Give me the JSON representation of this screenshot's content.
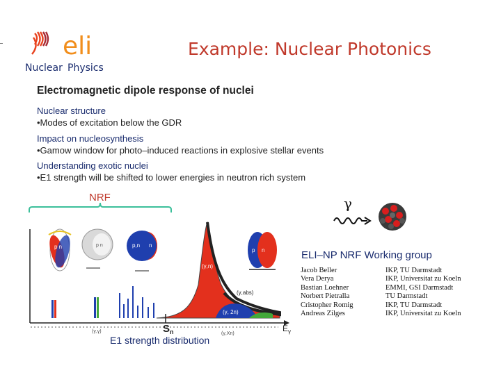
{
  "logo": {
    "wordmark": "eli",
    "line1": "Nuclear",
    "line2": "Physics"
  },
  "slide_title": "Example: Nuclear Photonics",
  "heading": "Electromagnetic dipole response of nuclei",
  "sections": [
    {
      "title": "Nuclear structure",
      "sub": "•Modes of excitation below the GDR"
    },
    {
      "title": "Impact on nucleosynthesis",
      "sub": "•Gamow window for photo–induced reactions in explosive stellar events"
    },
    {
      "title": "Understanding exotic nuclei",
      "sub": "•E1 strength will be shifted to lower energies in neutron rich system"
    }
  ],
  "nrf_label": "NRF",
  "gamma_symbol": "γ",
  "figure": {
    "nucleon_labels": [
      "p n",
      "p n",
      "p,n",
      "n",
      "p",
      "n"
    ],
    "peak_labels": [
      "(γ,n)",
      "(γ,abs)",
      "(γ, 2n)",
      "(γ,Xn)",
      "(γ,γ)"
    ],
    "axis_sn": "S",
    "axis_sn_sub": "n",
    "axis_e": "E",
    "axis_e_sub": "γ"
  },
  "working_group": {
    "title": "ELI–NP NRF Working group",
    "members": [
      {
        "name": "Jacob Beller",
        "affiliation": "IKP, TU Darmstadt"
      },
      {
        "name": "Vera Derya",
        "affiliation": "IKP, Universitat zu Koeln"
      },
      {
        "name": "Bastian Loehner",
        "affiliation": "EMMI, GSI Darmstadt"
      },
      {
        "name": "Norbert Pietralla",
        "affiliation": "TU Darmstadt"
      },
      {
        "name": "Cristopher Romig",
        "affiliation": "IKP, TU Darmstadt"
      },
      {
        "name": "Andreas Zilges",
        "affiliation": "IKP, Universitat zu Koeln"
      }
    ]
  },
  "caption": "E1 strength distribution",
  "colors": {
    "title": "#c0392b",
    "text_blue": "#1a2c6e",
    "bracket": "#3bbf9a",
    "gdr_red": "#e3301d",
    "bar_blue": "#1f3fae",
    "bar_green": "#43a83a"
  }
}
